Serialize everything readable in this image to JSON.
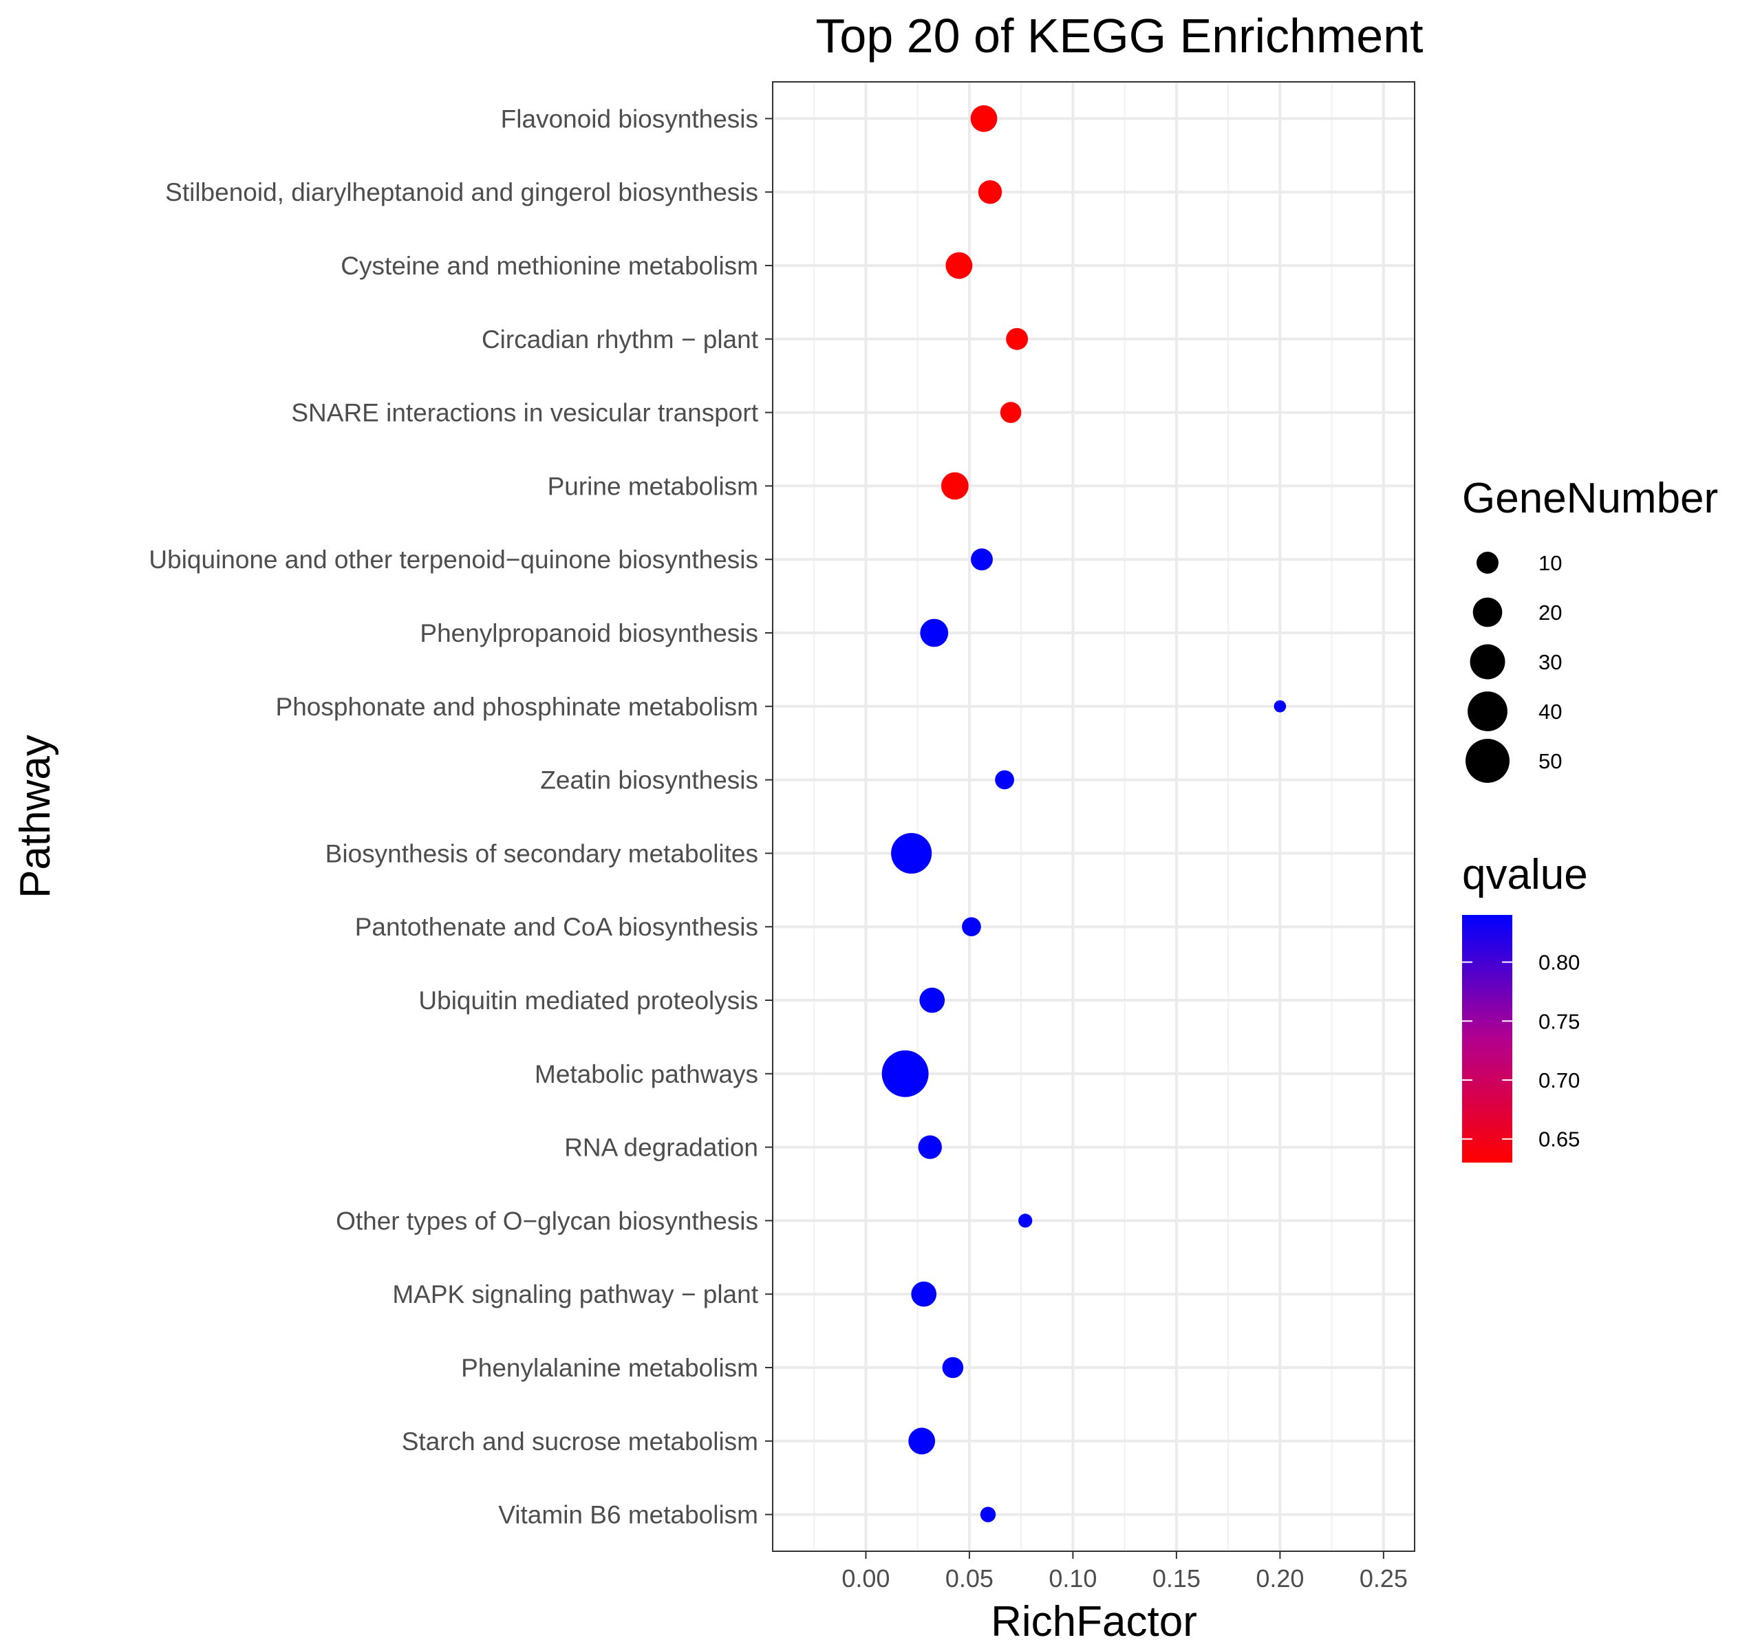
{
  "chart_data": {
    "type": "scatter",
    "title": "Top 20 of KEGG Enrichment",
    "xlabel": "RichFactor",
    "ylabel": "Pathway",
    "xlim": [
      -0.045,
      0.265
    ],
    "x_ticks": [
      "0.00",
      "0.05",
      "0.10",
      "0.15",
      "0.20",
      "0.25"
    ],
    "grid": true,
    "categories": [
      "Flavonoid biosynthesis",
      "Stilbenoid, diarylheptanoid and gingerol biosynthesis",
      "Cysteine and methionine metabolism",
      "Circadian rhythm − plant",
      "SNARE interactions in vesicular transport",
      "Purine metabolism",
      "Ubiquinone and other terpenoid−quinone biosynthesis",
      "Phenylpropanoid biosynthesis",
      "Phosphonate and phosphinate metabolism",
      "Zeatin biosynthesis",
      "Biosynthesis of secondary metabolites",
      "Pantothenate and CoA biosynthesis",
      "Ubiquitin mediated proteolysis",
      "Metabolic pathways",
      "RNA degradation",
      "Other types of O−glycan biosynthesis",
      "MAPK signaling pathway − plant",
      "Phenylalanine metabolism",
      "Starch and sucrose metabolism",
      "Vitamin B6 metabolism"
    ],
    "points": [
      {
        "pathway": "Flavonoid biosynthesis",
        "richfactor": 0.057,
        "genes": 16,
        "qvalue": 0.63
      },
      {
        "pathway": "Stilbenoid, diarylheptanoid and gingerol biosynthesis",
        "richfactor": 0.06,
        "genes": 12,
        "qvalue": 0.63
      },
      {
        "pathway": "Cysteine and methionine metabolism",
        "richfactor": 0.045,
        "genes": 16,
        "qvalue": 0.63
      },
      {
        "pathway": "Circadian rhythm − plant",
        "richfactor": 0.073,
        "genes": 10,
        "qvalue": 0.63
      },
      {
        "pathway": "SNARE interactions in vesicular transport",
        "richfactor": 0.07,
        "genes": 9,
        "qvalue": 0.63
      },
      {
        "pathway": "Purine metabolism",
        "richfactor": 0.043,
        "genes": 17,
        "qvalue": 0.63
      },
      {
        "pathway": "Ubiquinone and other terpenoid−quinone biosynthesis",
        "richfactor": 0.056,
        "genes": 10,
        "qvalue": 0.84
      },
      {
        "pathway": "Phenylpropanoid biosynthesis",
        "richfactor": 0.033,
        "genes": 18,
        "qvalue": 0.84
      },
      {
        "pathway": "Phosphonate and phosphinate metabolism",
        "richfactor": 0.2,
        "genes": 2,
        "qvalue": 0.84
      },
      {
        "pathway": "Zeatin biosynthesis",
        "richfactor": 0.067,
        "genes": 7,
        "qvalue": 0.84
      },
      {
        "pathway": "Biosynthesis of secondary metabolites",
        "richfactor": 0.022,
        "genes": 42,
        "qvalue": 0.84
      },
      {
        "pathway": "Pantothenate and CoA biosynthesis",
        "richfactor": 0.051,
        "genes": 7,
        "qvalue": 0.84
      },
      {
        "pathway": "Ubiquitin mediated proteolysis",
        "richfactor": 0.032,
        "genes": 14,
        "qvalue": 0.84
      },
      {
        "pathway": "Metabolic pathways",
        "richfactor": 0.019,
        "genes": 57,
        "qvalue": 0.84
      },
      {
        "pathway": "RNA degradation",
        "richfactor": 0.031,
        "genes": 12,
        "qvalue": 0.84
      },
      {
        "pathway": "Other types of O−glycan biosynthesis",
        "richfactor": 0.077,
        "genes": 3,
        "qvalue": 0.84
      },
      {
        "pathway": "MAPK signaling pathway − plant",
        "richfactor": 0.028,
        "genes": 14,
        "qvalue": 0.84
      },
      {
        "pathway": "Phenylalanine metabolism",
        "richfactor": 0.042,
        "genes": 9,
        "qvalue": 0.84
      },
      {
        "pathway": "Starch and sucrose metabolism",
        "richfactor": 0.027,
        "genes": 16,
        "qvalue": 0.84
      },
      {
        "pathway": "Vitamin B6 metabolism",
        "richfactor": 0.059,
        "genes": 4,
        "qvalue": 0.84
      }
    ],
    "size_legend": {
      "title": "GeneNumber",
      "values": [
        10,
        20,
        30,
        40,
        50
      ],
      "labels": [
        "10",
        "20",
        "30",
        "40",
        "50"
      ]
    },
    "color_legend": {
      "title": "qvalue",
      "range": [
        0.63,
        0.84
      ],
      "ticks": [
        0.65,
        0.7,
        0.75,
        0.8
      ],
      "labels": [
        "0.65",
        "0.70",
        "0.75",
        "0.80"
      ],
      "low_color": "#ff0000",
      "high_color": "#0000ff"
    }
  }
}
